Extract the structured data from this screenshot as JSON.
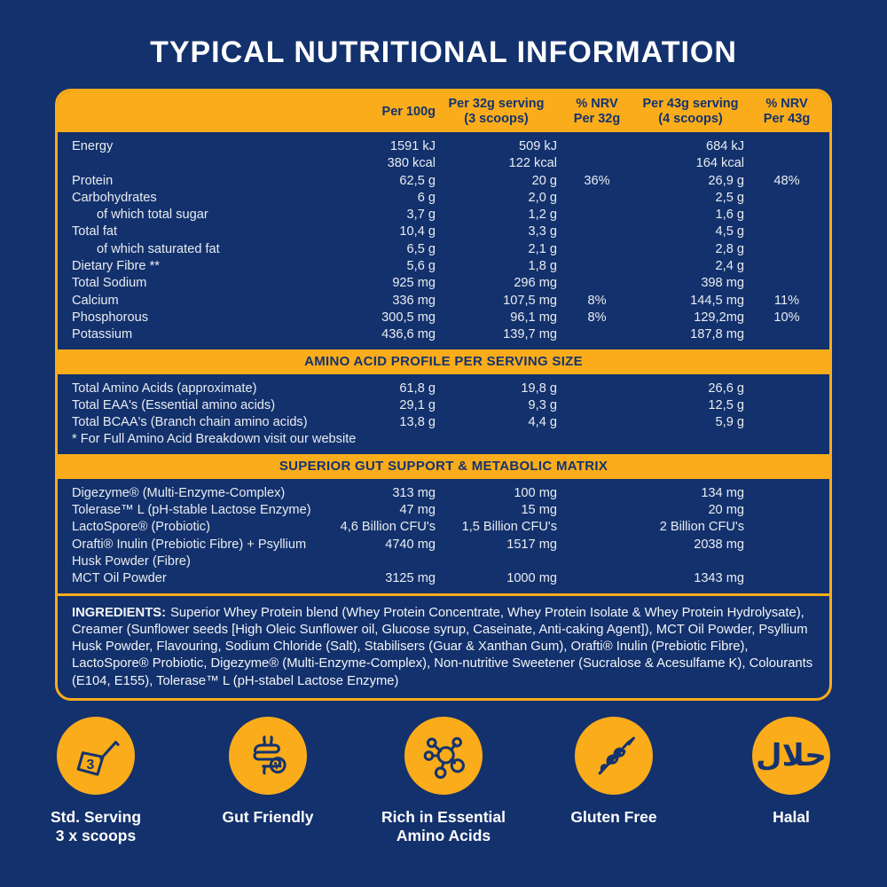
{
  "page": {
    "title": "TYPICAL NUTRITIONAL INFORMATION"
  },
  "colors": {
    "background": "#13316C",
    "accent_yellow": "#FAAC1B",
    "text_light": "#E9ECF2",
    "text_dark_on_yellow": "#14336E"
  },
  "table": {
    "headers": {
      "per100": "Per 100g",
      "per32_line1": "Per 32g serving",
      "per32_line2": "(3 scoops)",
      "nrv32_line1": "% NRV",
      "nrv32_line2": "Per 32g",
      "per43_line1": "Per 43g serving",
      "per43_line2": "(4 scoops)",
      "nrv43_line1": "% NRV",
      "nrv43_line2": "Per 43g"
    },
    "nutrition_rows": [
      {
        "label": "Energy",
        "v100": "1591 kJ",
        "v32": "509 kJ",
        "nrv32": "",
        "v43": "684 kJ",
        "nrv43": ""
      },
      {
        "label": "",
        "v100": "380 kcal",
        "v32": "122 kcal",
        "nrv32": "",
        "v43": "164 kcal",
        "nrv43": ""
      },
      {
        "label": "Protein",
        "v100": "62,5 g",
        "v32": "20 g",
        "nrv32": "36%",
        "v43": "26,9 g",
        "nrv43": "48%"
      },
      {
        "label": "Carbohydrates",
        "v100": "6 g",
        "v32": "2,0 g",
        "nrv32": "",
        "v43": "2,5 g",
        "nrv43": ""
      },
      {
        "label": "of which total sugar",
        "indent": true,
        "v100": "3,7 g",
        "v32": "1,2 g",
        "nrv32": "",
        "v43": "1,6 g",
        "nrv43": ""
      },
      {
        "label": "Total fat",
        "v100": "10,4 g",
        "v32": "3,3 g",
        "nrv32": "",
        "v43": "4,5 g",
        "nrv43": ""
      },
      {
        "label": "of which saturated fat",
        "indent": true,
        "v100": "6,5 g",
        "v32": "2,1 g",
        "nrv32": "",
        "v43": "2,8 g",
        "nrv43": ""
      },
      {
        "label": "Dietary Fibre **",
        "v100": "5,6 g",
        "v32": "1,8 g",
        "nrv32": "",
        "v43": "2,4 g",
        "nrv43": ""
      },
      {
        "label": "Total Sodium",
        "v100": "925 mg",
        "v32": "296 mg",
        "nrv32": "",
        "v43": "398 mg",
        "nrv43": ""
      },
      {
        "label": "Calcium",
        "v100": "336 mg",
        "v32": "107,5 mg",
        "nrv32": "8%",
        "v43": "144,5 mg",
        "nrv43": "11%"
      },
      {
        "label": "Phosphorous",
        "v100": "300,5 mg",
        "v32": "96,1 mg",
        "nrv32": "8%",
        "v43": "129,2mg",
        "nrv43": "10%"
      },
      {
        "label": "Potassium",
        "v100": "436,6 mg",
        "v32": "139,7 mg",
        "nrv32": "",
        "v43": "187,8 mg",
        "nrv43": ""
      }
    ],
    "amino_band_title": "AMINO ACID PROFILE PER SERVING SIZE",
    "amino_rows": [
      {
        "label": "Total Amino Acids (approximate)",
        "v100": "61,8 g",
        "v32": "19,8 g",
        "nrv32": "",
        "v43": "26,6 g",
        "nrv43": ""
      },
      {
        "label": "Total EAA's (Essential amino acids)",
        "v100": "29,1 g",
        "v32": "9,3 g",
        "nrv32": "",
        "v43": "12,5 g",
        "nrv43": ""
      },
      {
        "label": "Total BCAA's (Branch chain amino acids)",
        "v100": "13,8 g",
        "v32": "4,4 g",
        "nrv32": "",
        "v43": "5,9 g",
        "nrv43": ""
      }
    ],
    "amino_footnote": "* For Full Amino Acid Breakdown visit our website",
    "gut_band_title": "SUPERIOR GUT SUPPORT & METABOLIC MATRIX",
    "gut_rows": [
      {
        "label": "Digezyme® (Multi-Enzyme-Complex)",
        "v100": "313 mg",
        "v32": "100 mg",
        "nrv32": "",
        "v43": "134 mg",
        "nrv43": ""
      },
      {
        "label": "Tolerase™ L (pH-stable Lactose Enzyme)",
        "v100": "47 mg",
        "v32": "15 mg",
        "nrv32": "",
        "v43": "20 mg",
        "nrv43": ""
      },
      {
        "label": "LactoSpore® (Probiotic)",
        "v100": "4,6 Billion CFU's",
        "v32": "1,5 Billion CFU's",
        "nrv32": "",
        "v43": "2 Billion CFU's",
        "nrv43": ""
      },
      {
        "label": "Orafti® Inulin (Prebiotic Fibre) + Psyllium Husk Powder (Fibre)",
        "v100": "4740 mg",
        "v32": "1517 mg",
        "nrv32": "",
        "v43": "2038 mg",
        "nrv43": ""
      },
      {
        "label": "MCT Oil Powder",
        "v100": "3125 mg",
        "v32": "1000 mg",
        "nrv32": "",
        "v43": "1343 mg",
        "nrv43": ""
      }
    ],
    "ingredients_label": "INGREDIENTS:",
    "ingredients_text": "Superior Whey Protein blend (Whey Protein Concentrate, Whey Protein Isolate & Whey Protein Hydrolysate), Creamer (Sunflower seeds [High Oleic Sunflower oil, Glucose syrup, Caseinate, Anti-caking Agent]), MCT Oil Powder, Psyllium Husk Powder, Flavouring, Sodium Chloride (Salt), Stabilisers (Guar & Xanthan Gum), Orafti® Inulin (Prebiotic Fibre), LactoSpore® Probiotic, Digezyme® (Multi-Enzyme-Complex), Non-nutritive Sweetener (Sucralose & Acesulfame K), Colourants (E104, E155), Tolerase™ L (pH-stabel Lactose Enzyme)"
  },
  "badges": [
    {
      "icon": "scoop-icon",
      "line1": "Std. Serving",
      "line2": "3 x scoops",
      "scoop_number": "3"
    },
    {
      "icon": "gut-icon",
      "line1": "Gut Friendly",
      "line2": ""
    },
    {
      "icon": "amino-molecule-icon",
      "line1": "Rich in Essential",
      "line2": "Amino Acids"
    },
    {
      "icon": "wheat-icon",
      "line1": "Gluten Free",
      "line2": ""
    },
    {
      "icon": "halal-icon",
      "line1": "Halal",
      "line2": "",
      "halal_text": "حلال"
    }
  ]
}
